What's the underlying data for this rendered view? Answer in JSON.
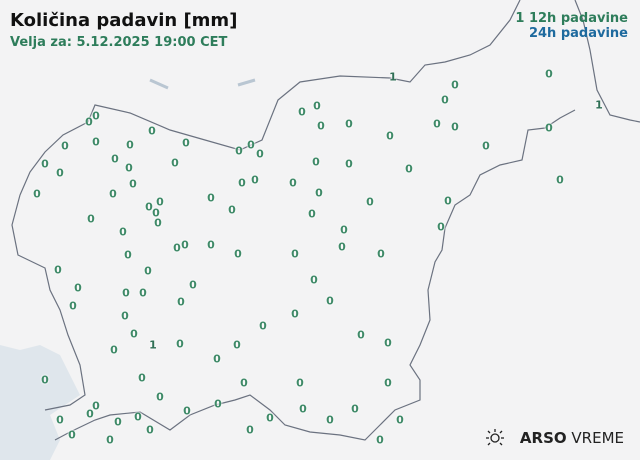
{
  "header": {
    "title": "Količina padavin [mm]",
    "valid_for": "Velja za: 5.12.2025 19:00 CET"
  },
  "legend": {
    "marker_12h": "1",
    "label_12h": "12h padavine",
    "label_24h": "24h padavine",
    "color_12h": "#2e7d5b",
    "color_24h": "#1e6a9e"
  },
  "logo": {
    "icon": "sun-cloud-icon",
    "brand": "ARSO",
    "product": "VREME"
  },
  "colors": {
    "land": "#f3f3f4",
    "sea": "#dfe6ec",
    "border": "#6b7280"
  },
  "stations": [
    "1",
    "0",
    "0",
    "1",
    "0",
    "0",
    "0",
    "0",
    "0",
    "0",
    "0",
    "0",
    "0",
    "0",
    "0",
    "0",
    "0",
    "0",
    "0",
    "0",
    "0",
    "0",
    "0",
    "0",
    "0",
    "0",
    "0",
    "0",
    "0",
    "0",
    "0",
    "0",
    "0",
    "0",
    "0",
    "0",
    "0",
    "0",
    "0",
    "0",
    "0",
    "0",
    "0",
    "0",
    "0",
    "0",
    "0",
    "0",
    "0",
    "0",
    "0",
    "0",
    "0",
    "0",
    "0",
    "0",
    "0",
    "0",
    "0",
    "0",
    "0",
    "0",
    "0",
    "0",
    "0",
    "0",
    "0",
    "0",
    "0",
    "0",
    "0",
    "0",
    "0",
    "0",
    "0",
    "0",
    "0",
    "0",
    "0",
    "0",
    "0",
    "0",
    "0",
    "0",
    "0",
    "1",
    "0",
    "0",
    "0",
    "0",
    "0",
    "0",
    "0",
    "0",
    "0",
    "0",
    "0",
    "0",
    "0",
    "0",
    "0",
    "0",
    "0",
    "0",
    "0"
  ]
}
